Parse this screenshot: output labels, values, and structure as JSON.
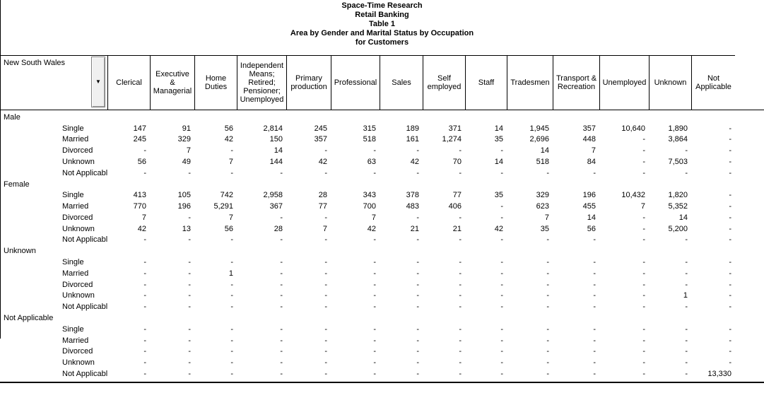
{
  "title_lines": [
    "Space-Time Research",
    "Retail Banking",
    "Table 1",
    "Area by Gender and Marital Status by Occupation",
    "for Customers"
  ],
  "table": {
    "corner_label": "New South Wales",
    "dropdown_icon": "▼",
    "columns": [
      "Clerical",
      "Executive & Managerial",
      "Home Duties",
      "Independent Means; Retired; Pensioner; Unemployed",
      "Primary production",
      "Professional",
      "Sales",
      "Self employed",
      "Staff",
      "Tradesmen",
      "Transport & Recreation",
      "Unemployed",
      "Unknown",
      "Not Applicable"
    ],
    "rows": [
      {
        "label": "Male",
        "level": 0,
        "cells": []
      },
      {
        "label": "Single",
        "level": 1,
        "cells": [
          "147",
          "91",
          "56",
          "2,814",
          "245",
          "315",
          "189",
          "371",
          "14",
          "1,945",
          "357",
          "10,640",
          "1,890",
          "-"
        ]
      },
      {
        "label": "Married",
        "level": 1,
        "cells": [
          "245",
          "329",
          "42",
          "150",
          "357",
          "518",
          "161",
          "1,274",
          "35",
          "2,696",
          "448",
          "-",
          "3,864",
          "-"
        ]
      },
      {
        "label": "Divorced",
        "level": 1,
        "cells": [
          "-",
          "7",
          "-",
          "14",
          "-",
          "-",
          "-",
          "-",
          "-",
          "14",
          "7",
          "-",
          "-",
          "-"
        ]
      },
      {
        "label": "Unknown",
        "level": 1,
        "cells": [
          "56",
          "49",
          "7",
          "144",
          "42",
          "63",
          "42",
          "70",
          "14",
          "518",
          "84",
          "-",
          "7,503",
          "-"
        ]
      },
      {
        "label": "Not Applicable",
        "level": 1,
        "cells": [
          "-",
          "-",
          "-",
          "-",
          "-",
          "-",
          "-",
          "-",
          "-",
          "-",
          "-",
          "-",
          "-",
          "-"
        ]
      },
      {
        "label": "Female",
        "level": 0,
        "cells": []
      },
      {
        "label": "Single",
        "level": 1,
        "cells": [
          "413",
          "105",
          "742",
          "2,958",
          "28",
          "343",
          "378",
          "77",
          "35",
          "329",
          "196",
          "10,432",
          "1,820",
          "-"
        ]
      },
      {
        "label": "Married",
        "level": 1,
        "cells": [
          "770",
          "196",
          "5,291",
          "367",
          "77",
          "700",
          "483",
          "406",
          "-",
          "623",
          "455",
          "7",
          "5,352",
          "-"
        ]
      },
      {
        "label": "Divorced",
        "level": 1,
        "cells": [
          "7",
          "-",
          "7",
          "-",
          "-",
          "7",
          "-",
          "-",
          "-",
          "7",
          "14",
          "-",
          "14",
          "-"
        ]
      },
      {
        "label": "Unknown",
        "level": 1,
        "cells": [
          "42",
          "13",
          "56",
          "28",
          "7",
          "42",
          "21",
          "21",
          "42",
          "35",
          "56",
          "-",
          "5,200",
          "-"
        ]
      },
      {
        "label": "Not Applicable",
        "level": 1,
        "cells": [
          "-",
          "-",
          "-",
          "-",
          "-",
          "-",
          "-",
          "-",
          "-",
          "-",
          "-",
          "-",
          "-",
          "-"
        ]
      },
      {
        "label": "Unknown",
        "level": 0,
        "cells": []
      },
      {
        "label": "Single",
        "level": 1,
        "cells": [
          "-",
          "-",
          "-",
          "-",
          "-",
          "-",
          "-",
          "-",
          "-",
          "-",
          "-",
          "-",
          "-",
          "-"
        ]
      },
      {
        "label": "Married",
        "level": 1,
        "cells": [
          "-",
          "-",
          "1",
          "-",
          "-",
          "-",
          "-",
          "-",
          "-",
          "-",
          "-",
          "-",
          "-",
          "-"
        ]
      },
      {
        "label": "Divorced",
        "level": 1,
        "cells": [
          "-",
          "-",
          "-",
          "-",
          "-",
          "-",
          "-",
          "-",
          "-",
          "-",
          "-",
          "-",
          "-",
          "-"
        ]
      },
      {
        "label": "Unknown",
        "level": 1,
        "cells": [
          "-",
          "-",
          "-",
          "-",
          "-",
          "-",
          "-",
          "-",
          "-",
          "-",
          "-",
          "-",
          "1",
          "-"
        ]
      },
      {
        "label": "Not Applicable",
        "level": 1,
        "cells": [
          "-",
          "-",
          "-",
          "-",
          "-",
          "-",
          "-",
          "-",
          "-",
          "-",
          "-",
          "-",
          "-",
          "-"
        ]
      },
      {
        "label": "Not Applicable",
        "level": 0,
        "cells": []
      },
      {
        "label": "Single",
        "level": 1,
        "cells": [
          "-",
          "-",
          "-",
          "-",
          "-",
          "-",
          "-",
          "-",
          "-",
          "-",
          "-",
          "-",
          "-",
          "-"
        ]
      },
      {
        "label": "Married",
        "level": 1,
        "cells": [
          "-",
          "-",
          "-",
          "-",
          "-",
          "-",
          "-",
          "-",
          "-",
          "-",
          "-",
          "-",
          "-",
          "-"
        ]
      },
      {
        "label": "Divorced",
        "level": 1,
        "cells": [
          "-",
          "-",
          "-",
          "-",
          "-",
          "-",
          "-",
          "-",
          "-",
          "-",
          "-",
          "-",
          "-",
          "-"
        ]
      },
      {
        "label": "Unknown",
        "level": 1,
        "cells": [
          "-",
          "-",
          "-",
          "-",
          "-",
          "-",
          "-",
          "-",
          "-",
          "-",
          "-",
          "-",
          "-",
          "-"
        ]
      },
      {
        "label": "Not Applicable",
        "level": 1,
        "cells": [
          "-",
          "-",
          "-",
          "-",
          "-",
          "-",
          "-",
          "-",
          "-",
          "-",
          "-",
          "-",
          "-",
          "13,330"
        ]
      }
    ]
  },
  "colors": {
    "line": "#000000",
    "button_face": "#f0f0f0",
    "button_border": "#808080"
  }
}
